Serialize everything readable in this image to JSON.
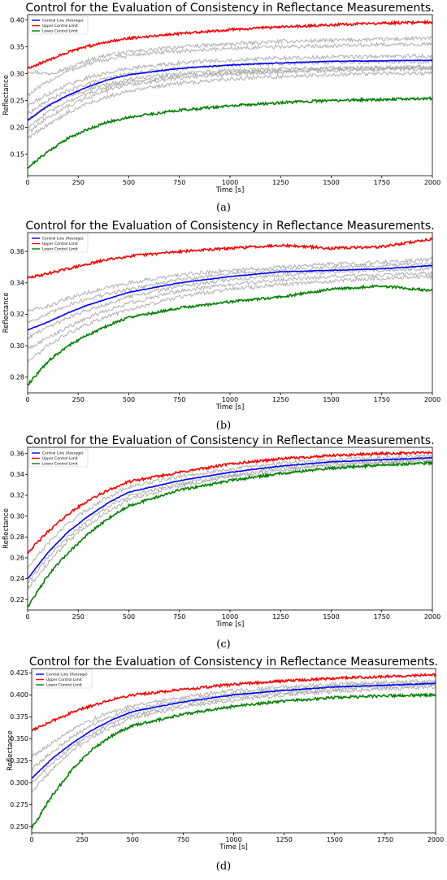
{
  "chart_data": [
    {
      "type": "line",
      "panel": "a",
      "caption": "(a)",
      "title": "Control for the Evaluation of Consistency in Reflectance Measurements.",
      "xlabel": "Time [s]",
      "ylabel": "Reflectance",
      "xlim": [
        0,
        2000
      ],
      "ylim": [
        0.11,
        0.41
      ],
      "xticks": [
        0,
        250,
        500,
        750,
        1000,
        1250,
        1500,
        1750,
        2000
      ],
      "yticks": [
        0.15,
        0.2,
        0.25,
        0.3,
        0.35,
        0.4
      ],
      "ytick_labels": [
        "0.15",
        "0.20",
        "0.25",
        "0.30",
        "0.35",
        "0.40"
      ],
      "grid": false,
      "legend_position": "top-left",
      "x": [
        0,
        100,
        200,
        300,
        400,
        500,
        750,
        1000,
        1250,
        1500,
        1750,
        2000
      ],
      "series": [
        {
          "name": "Central Line (Average)",
          "color": "#0000ff",
          "values": [
            0.213,
            0.24,
            0.26,
            0.276,
            0.289,
            0.298,
            0.31,
            0.316,
            0.32,
            0.323,
            0.324,
            0.325
          ]
        },
        {
          "name": "Upper Control Limit",
          "color": "#ff0000",
          "values": [
            0.31,
            0.325,
            0.34,
            0.351,
            0.36,
            0.366,
            0.375,
            0.382,
            0.387,
            0.391,
            0.394,
            0.396
          ]
        },
        {
          "name": "Lower Control Limit",
          "color": "#008000",
          "values": [
            0.125,
            0.155,
            0.18,
            0.197,
            0.21,
            0.219,
            0.232,
            0.24,
            0.246,
            0.25,
            0.252,
            0.254
          ]
        }
      ],
      "gray_series": [
        [
          0.305,
          0.3,
          0.31,
          0.325,
          0.335,
          0.34,
          0.35,
          0.355,
          0.36,
          0.362,
          0.364,
          0.366
        ],
        [
          0.26,
          0.285,
          0.305,
          0.318,
          0.327,
          0.334,
          0.342,
          0.347,
          0.35,
          0.352,
          0.354,
          0.355
        ],
        [
          0.24,
          0.262,
          0.28,
          0.293,
          0.302,
          0.31,
          0.32,
          0.326,
          0.329,
          0.331,
          0.332,
          0.333
        ],
        [
          0.225,
          0.25,
          0.268,
          0.282,
          0.292,
          0.3,
          0.31,
          0.316,
          0.319,
          0.321,
          0.322,
          0.323
        ],
        [
          0.215,
          0.24,
          0.258,
          0.272,
          0.282,
          0.29,
          0.3,
          0.306,
          0.309,
          0.311,
          0.312,
          0.313
        ],
        [
          0.2,
          0.228,
          0.248,
          0.264,
          0.276,
          0.285,
          0.296,
          0.302,
          0.306,
          0.308,
          0.31,
          0.311
        ],
        [
          0.19,
          0.218,
          0.24,
          0.256,
          0.27,
          0.28,
          0.292,
          0.299,
          0.303,
          0.306,
          0.308,
          0.309
        ],
        [
          0.18,
          0.205,
          0.228,
          0.245,
          0.258,
          0.268,
          0.282,
          0.29,
          0.295,
          0.298,
          0.3,
          0.301
        ]
      ]
    },
    {
      "type": "line",
      "panel": "b",
      "caption": "(b)",
      "title": "Control for the Evaluation of Consistency in Reflectance Measurements.",
      "xlabel": "Time [s]",
      "ylabel": "Reflectance",
      "xlim": [
        0,
        2000
      ],
      "ylim": [
        0.27,
        0.372
      ],
      "xticks": [
        0,
        250,
        500,
        750,
        1000,
        1250,
        1500,
        1750,
        2000
      ],
      "yticks": [
        0.28,
        0.3,
        0.32,
        0.34,
        0.36
      ],
      "ytick_labels": [
        "0.28",
        "0.30",
        "0.32",
        "0.34",
        "0.36"
      ],
      "grid": false,
      "legend_position": "top-left",
      "x": [
        0,
        100,
        200,
        300,
        400,
        500,
        750,
        1000,
        1250,
        1500,
        1750,
        2000
      ],
      "series": [
        {
          "name": "Central Line (Average)",
          "color": "#0000ff",
          "values": [
            0.31,
            0.315,
            0.321,
            0.326,
            0.33,
            0.334,
            0.34,
            0.344,
            0.347,
            0.348,
            0.349,
            0.351
          ]
        },
        {
          "name": "Upper Control Limit",
          "color": "#ff0000",
          "values": [
            0.343,
            0.346,
            0.349,
            0.352,
            0.355,
            0.357,
            0.36,
            0.362,
            0.364,
            0.362,
            0.363,
            0.368
          ]
        },
        {
          "name": "Lower Control Limit",
          "color": "#008000",
          "values": [
            0.275,
            0.29,
            0.3,
            0.307,
            0.313,
            0.318,
            0.324,
            0.328,
            0.331,
            0.336,
            0.338,
            0.335
          ]
        }
      ],
      "gray_series": [
        [
          0.322,
          0.325,
          0.33,
          0.334,
          0.337,
          0.34,
          0.345,
          0.348,
          0.35,
          0.352,
          0.353,
          0.355
        ],
        [
          0.315,
          0.32,
          0.326,
          0.33,
          0.333,
          0.336,
          0.342,
          0.346,
          0.348,
          0.35,
          0.351,
          0.352
        ],
        [
          0.305,
          0.312,
          0.318,
          0.323,
          0.327,
          0.331,
          0.338,
          0.342,
          0.345,
          0.347,
          0.348,
          0.349
        ],
        [
          0.298,
          0.305,
          0.312,
          0.318,
          0.323,
          0.327,
          0.335,
          0.339,
          0.342,
          0.344,
          0.345,
          0.346
        ],
        [
          0.29,
          0.3,
          0.308,
          0.314,
          0.319,
          0.323,
          0.331,
          0.336,
          0.339,
          0.341,
          0.343,
          0.344
        ]
      ]
    },
    {
      "type": "line",
      "panel": "c",
      "caption": "(c)",
      "title": "Control for the Evaluation of Consistency in Reflectance Measurements.",
      "xlabel": "Time [s]",
      "ylabel": "Reflectance",
      "xlim": [
        0,
        2000
      ],
      "ylim": [
        0.21,
        0.366
      ],
      "xticks": [
        0,
        250,
        500,
        750,
        1000,
        1250,
        1500,
        1750,
        2000
      ],
      "yticks": [
        0.22,
        0.24,
        0.26,
        0.28,
        0.3,
        0.32,
        0.34,
        0.36
      ],
      "ytick_labels": [
        "0.22",
        "0.24",
        "0.26",
        "0.28",
        "0.30",
        "0.32",
        "0.34",
        "0.36"
      ],
      "grid": false,
      "legend_position": "top-left",
      "x": [
        0,
        100,
        200,
        300,
        400,
        500,
        750,
        1000,
        1250,
        1500,
        1750,
        2000
      ],
      "series": [
        {
          "name": "Central Line (Average)",
          "color": "#0000ff",
          "values": [
            0.24,
            0.265,
            0.285,
            0.3,
            0.313,
            0.323,
            0.334,
            0.342,
            0.348,
            0.352,
            0.354,
            0.356
          ]
        },
        {
          "name": "Upper Control Limit",
          "color": "#ff0000",
          "values": [
            0.265,
            0.285,
            0.302,
            0.315,
            0.325,
            0.333,
            0.342,
            0.35,
            0.355,
            0.358,
            0.36,
            0.361
          ]
        },
        {
          "name": "Lower Control Limit",
          "color": "#008000",
          "values": [
            0.213,
            0.243,
            0.265,
            0.283,
            0.298,
            0.31,
            0.325,
            0.334,
            0.341,
            0.346,
            0.349,
            0.351
          ]
        }
      ],
      "gray_series": [
        [
          0.25,
          0.274,
          0.293,
          0.307,
          0.319,
          0.328,
          0.338,
          0.345,
          0.351,
          0.354,
          0.356,
          0.358
        ],
        [
          0.236,
          0.26,
          0.28,
          0.296,
          0.309,
          0.319,
          0.331,
          0.339,
          0.346,
          0.35,
          0.352,
          0.354
        ],
        [
          0.23,
          0.255,
          0.276,
          0.292,
          0.305,
          0.316,
          0.329,
          0.338,
          0.344,
          0.348,
          0.351,
          0.353
        ]
      ]
    },
    {
      "type": "line",
      "panel": "d",
      "caption": "(d)",
      "title": "Control for the Evaluation of Consistency in Reflectance Measurements.",
      "xlabel": "Time [s]",
      "ylabel": "Reflectance",
      "xlim": [
        0,
        2000
      ],
      "ylim": [
        0.243,
        0.43
      ],
      "xticks": [
        0,
        250,
        500,
        750,
        1000,
        1250,
        1500,
        1750,
        2000
      ],
      "yticks": [
        0.25,
        0.275,
        0.3,
        0.325,
        0.35,
        0.375,
        0.4,
        0.425
      ],
      "ytick_labels": [
        "0.250",
        "0.275",
        "0.300",
        "0.325",
        "0.350",
        "0.375",
        "0.400",
        "0.425"
      ],
      "grid": false,
      "legend_position": "top-left",
      "x": [
        0,
        100,
        200,
        300,
        400,
        500,
        750,
        1000,
        1250,
        1500,
        1750,
        2000
      ],
      "series": [
        {
          "name": "Central Line (Average)",
          "color": "#0000ff",
          "values": [
            0.305,
            0.327,
            0.345,
            0.36,
            0.372,
            0.381,
            0.392,
            0.4,
            0.405,
            0.409,
            0.411,
            0.413
          ]
        },
        {
          "name": "Upper Control Limit",
          "color": "#ff0000",
          "values": [
            0.36,
            0.37,
            0.38,
            0.388,
            0.395,
            0.4,
            0.406,
            0.412,
            0.416,
            0.419,
            0.421,
            0.423
          ]
        },
        {
          "name": "Lower Control Limit",
          "color": "#008000",
          "values": [
            0.248,
            0.285,
            0.315,
            0.338,
            0.354,
            0.365,
            0.378,
            0.387,
            0.393,
            0.397,
            0.399,
            0.4
          ]
        }
      ],
      "gray_series": [
        [
          0.33,
          0.345,
          0.36,
          0.372,
          0.381,
          0.388,
          0.398,
          0.405,
          0.409,
          0.412,
          0.414,
          0.416
        ],
        [
          0.315,
          0.335,
          0.352,
          0.366,
          0.376,
          0.384,
          0.394,
          0.401,
          0.406,
          0.41,
          0.412,
          0.414
        ],
        [
          0.3,
          0.322,
          0.341,
          0.356,
          0.368,
          0.377,
          0.389,
          0.397,
          0.402,
          0.406,
          0.409,
          0.411
        ],
        [
          0.29,
          0.315,
          0.336,
          0.352,
          0.364,
          0.374,
          0.386,
          0.394,
          0.4,
          0.404,
          0.407,
          0.409
        ]
      ]
    }
  ]
}
